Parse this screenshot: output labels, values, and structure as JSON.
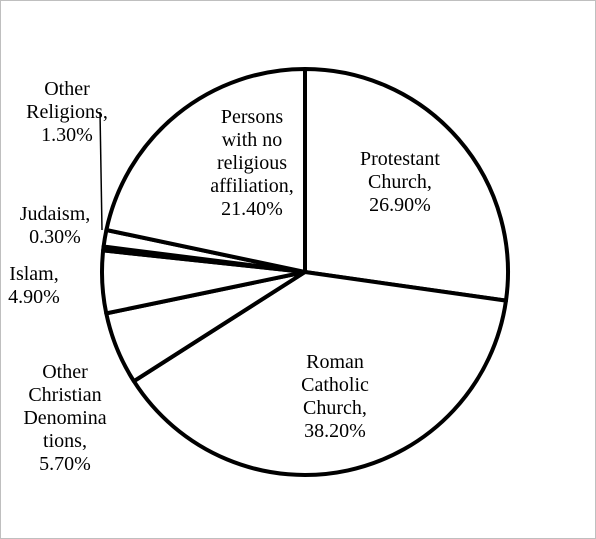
{
  "chart_data": {
    "type": "pie",
    "title": "",
    "start": "12 o'clock, clockwise",
    "fill_color": "#ffffff",
    "stroke_color": "#000000",
    "slices": [
      {
        "name": "Protestant Church",
        "value": 26.9,
        "label": [
          "Protestant",
          "Church,",
          "26.90%"
        ]
      },
      {
        "name": "Roman Catholic Church",
        "value": 38.2,
        "label": [
          "Roman",
          "Catholic",
          "Church,",
          "38.20%"
        ]
      },
      {
        "name": "Other Christian Denominations",
        "value": 5.7,
        "label": [
          "Other",
          "Christian",
          "Denomina",
          "tions,",
          "5.70%"
        ]
      },
      {
        "name": "Islam",
        "value": 4.9,
        "label": [
          "Islam,",
          "4.90%"
        ]
      },
      {
        "name": "Judaism",
        "value": 0.3,
        "label": [
          "Judaism,",
          "0.30%"
        ]
      },
      {
        "name": "Other Religions",
        "value": 1.3,
        "label": [
          "Other",
          "Religions,",
          "1.30%"
        ]
      },
      {
        "name": "Persons with no religious affiliation",
        "value": 21.4,
        "label": [
          "Persons",
          "with no",
          "religious",
          "affiliation,",
          "21.40%"
        ]
      }
    ]
  }
}
